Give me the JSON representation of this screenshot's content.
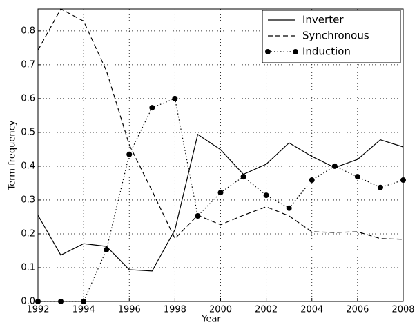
{
  "chart_data": {
    "type": "line",
    "x_label": "Year",
    "y_label": "Term frequency",
    "x": [
      1992,
      1993,
      1994,
      1995,
      1996,
      1997,
      1998,
      1999,
      2000,
      2001,
      2002,
      2003,
      2004,
      2005,
      2006,
      2007,
      2008
    ],
    "series": [
      {
        "name": "Inverter",
        "color": "#000000",
        "linestyle": "solid",
        "values": [
          0.255,
          0.137,
          0.171,
          0.163,
          0.094,
          0.09,
          0.212,
          0.494,
          0.449,
          0.376,
          0.406,
          0.469,
          0.429,
          0.396,
          0.42,
          0.478,
          0.457
        ]
      },
      {
        "name": "Synchronous",
        "color": "#000000",
        "linestyle": "dashed",
        "values": [
          0.743,
          0.865,
          0.829,
          0.682,
          0.463,
          0.327,
          0.186,
          0.255,
          0.227,
          0.255,
          0.28,
          0.253,
          0.206,
          0.204,
          0.206,
          0.186,
          0.184
        ]
      },
      {
        "name": "Induction",
        "color": "#000000",
        "linestyle": "dotted",
        "marker": "circle",
        "values": [
          0,
          0,
          0,
          0.153,
          0.435,
          0.573,
          0.6,
          0.253,
          0.322,
          0.369,
          0.314,
          0.276,
          0.359,
          0.4,
          0.369,
          0.337,
          0.359
        ]
      }
    ],
    "xlim": [
      1992,
      2008
    ],
    "xticks": [
      1992,
      1994,
      1996,
      1998,
      2000,
      2002,
      2004,
      2006,
      2008
    ],
    "ylim": [
      0,
      0.865
    ],
    "yticks": [
      {
        "value": 0,
        "label": "0.0"
      },
      0.1,
      0.2,
      0.3,
      0.4,
      0.5,
      0.6,
      0.7,
      0.8
    ],
    "grid": true,
    "legend": "upper right"
  }
}
